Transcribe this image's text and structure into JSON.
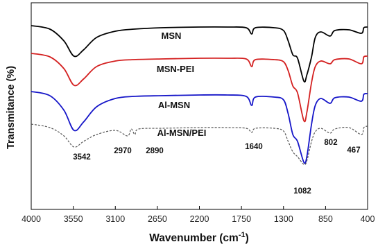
{
  "chart_data": {
    "type": "line",
    "xlabel": "Wavenumber (cm",
    "xlabel_sup": "-1",
    "xlabel_end": ")",
    "ylabel": "Transmitance (%)",
    "xlim": [
      4000,
      400
    ],
    "x_reversed": true,
    "x_ticks": [
      "4000",
      "3550",
      "3100",
      "2650",
      "2200",
      "1750",
      "1300",
      "850",
      "400"
    ],
    "y_ticks_visible": false,
    "series": [
      {
        "name": "MSN",
        "color": "#000000",
        "dashed": false,
        "points": [
          [
            4000,
            33
          ],
          [
            3800,
            38
          ],
          [
            3650,
            55
          ],
          [
            3542,
            77
          ],
          [
            3440,
            68
          ],
          [
            3300,
            50
          ],
          [
            3100,
            41
          ],
          [
            2900,
            38
          ],
          [
            2600,
            36
          ],
          [
            2200,
            35
          ],
          [
            1900,
            35
          ],
          [
            1700,
            36
          ],
          [
            1640,
            45
          ],
          [
            1600,
            36
          ],
          [
            1400,
            36
          ],
          [
            1300,
            40
          ],
          [
            1250,
            55
          ],
          [
            1200,
            75
          ],
          [
            1150,
            80
          ],
          [
            1082,
            113
          ],
          [
            1050,
            104
          ],
          [
            1000,
            78
          ],
          [
            960,
            50
          ],
          [
            900,
            42
          ],
          [
            802,
            48
          ],
          [
            750,
            40
          ],
          [
            600,
            39
          ],
          [
            467,
            44
          ],
          [
            440,
            36
          ],
          [
            400,
            35
          ]
        ]
      },
      {
        "name": "MSN-PEI",
        "color": "#d42020",
        "dashed": false,
        "points": [
          [
            4000,
            73
          ],
          [
            3800,
            78
          ],
          [
            3650,
            95
          ],
          [
            3542,
            119
          ],
          [
            3440,
            110
          ],
          [
            3300,
            92
          ],
          [
            3100,
            84
          ],
          [
            2900,
            82
          ],
          [
            2600,
            81
          ],
          [
            2200,
            80
          ],
          [
            1900,
            80
          ],
          [
            1700,
            81
          ],
          [
            1640,
            92
          ],
          [
            1600,
            82
          ],
          [
            1400,
            82
          ],
          [
            1300,
            85
          ],
          [
            1250,
            98
          ],
          [
            1200,
            120
          ],
          [
            1150,
            130
          ],
          [
            1082,
            170
          ],
          [
            1050,
            158
          ],
          [
            1000,
            115
          ],
          [
            960,
            92
          ],
          [
            900,
            84
          ],
          [
            802,
            88
          ],
          [
            750,
            82
          ],
          [
            600,
            81
          ],
          [
            467,
            88
          ],
          [
            440,
            78
          ],
          [
            400,
            77
          ]
        ]
      },
      {
        "name": "Al-MSN",
        "color": "#1515c8",
        "dashed": false,
        "points": [
          [
            4000,
            128
          ],
          [
            3800,
            134
          ],
          [
            3650,
            155
          ],
          [
            3542,
            184
          ],
          [
            3440,
            172
          ],
          [
            3300,
            150
          ],
          [
            3100,
            138
          ],
          [
            2900,
            135
          ],
          [
            2600,
            134
          ],
          [
            2200,
            133
          ],
          [
            1900,
            133
          ],
          [
            1700,
            135
          ],
          [
            1640,
            148
          ],
          [
            1600,
            136
          ],
          [
            1400,
            136
          ],
          [
            1300,
            140
          ],
          [
            1250,
            160
          ],
          [
            1200,
            190
          ],
          [
            1150,
            200
          ],
          [
            1082,
            230
          ],
          [
            1050,
            222
          ],
          [
            1000,
            175
          ],
          [
            960,
            148
          ],
          [
            900,
            138
          ],
          [
            802,
            145
          ],
          [
            750,
            137
          ],
          [
            600,
            136
          ],
          [
            467,
            142
          ],
          [
            440,
            132
          ],
          [
            400,
            131
          ]
        ]
      },
      {
        "name": "Al-MSN/PEI",
        "color": "#555555",
        "dashed": true,
        "points": [
          [
            4000,
            175
          ],
          [
            3800,
            180
          ],
          [
            3650,
            192
          ],
          [
            3542,
            208
          ],
          [
            3440,
            200
          ],
          [
            3300,
            190
          ],
          [
            3100,
            184
          ],
          [
            2970,
            192
          ],
          [
            2930,
            182
          ],
          [
            2890,
            190
          ],
          [
            2850,
            182
          ],
          [
            2600,
            181
          ],
          [
            2200,
            180
          ],
          [
            1900,
            180
          ],
          [
            1700,
            181
          ],
          [
            1640,
            187
          ],
          [
            1600,
            181
          ],
          [
            1400,
            181
          ],
          [
            1300,
            185
          ],
          [
            1250,
            200
          ],
          [
            1200,
            215
          ],
          [
            1150,
            222
          ],
          [
            1082,
            233
          ],
          [
            1050,
            228
          ],
          [
            1000,
            200
          ],
          [
            960,
            186
          ],
          [
            900,
            181
          ],
          [
            802,
            188
          ],
          [
            750,
            182
          ],
          [
            600,
            180
          ],
          [
            467,
            190
          ],
          [
            440,
            180
          ],
          [
            400,
            178
          ]
        ]
      }
    ],
    "series_labels": [
      "MSN",
      "MSN-PEI",
      "Al-MSN",
      "Al-MSN/PEI"
    ],
    "peak_annotations": [
      {
        "text": "3542",
        "x": 3542
      },
      {
        "text": "2970",
        "x": 2970
      },
      {
        "text": "2890",
        "x": 2890
      },
      {
        "text": "1640",
        "x": 1640
      },
      {
        "text": "1082",
        "x": 1082
      },
      {
        "text": "802",
        "x": 802
      },
      {
        "text": "467",
        "x": 467
      }
    ]
  }
}
